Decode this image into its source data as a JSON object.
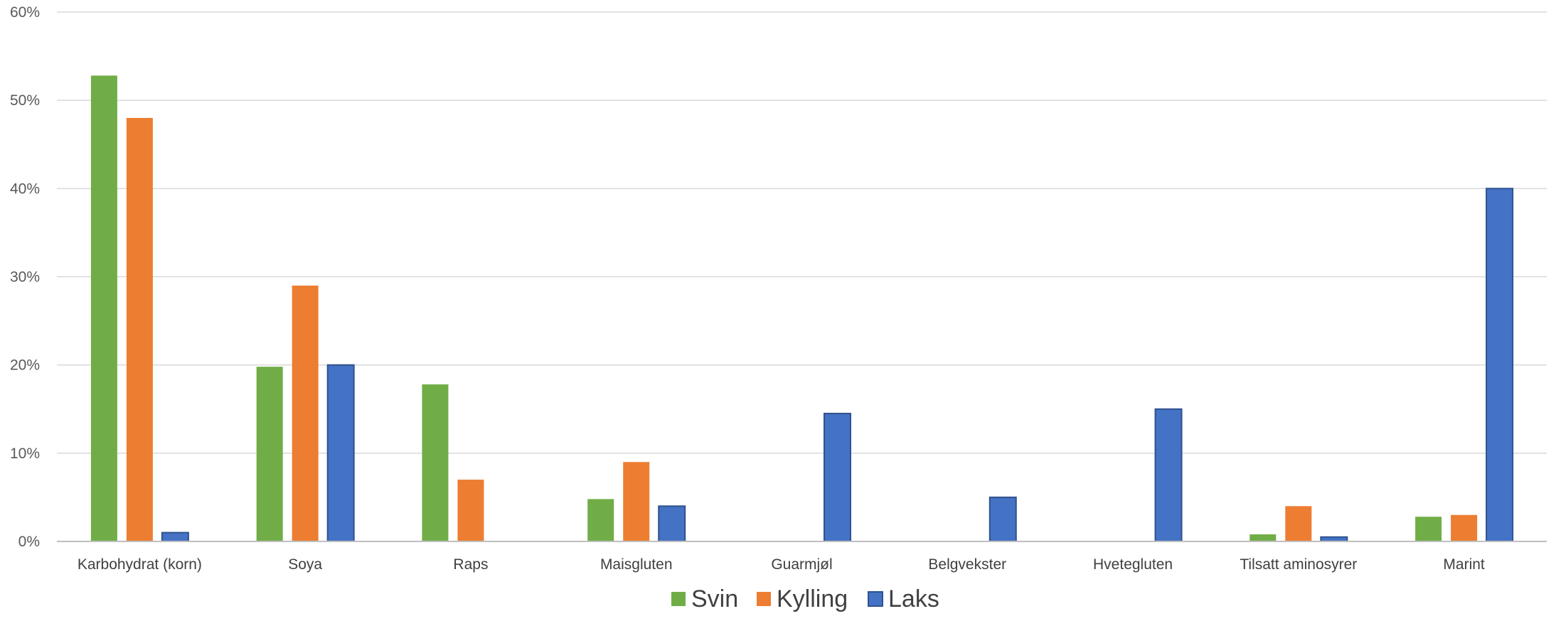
{
  "chart_data": {
    "type": "bar",
    "title": "",
    "xlabel": "",
    "ylabel": "",
    "ylim": [
      0,
      60
    ],
    "y_ticks": [
      "0%",
      "10%",
      "20%",
      "30%",
      "40%",
      "50%",
      "60%"
    ],
    "grid": true,
    "legend_position": "bottom",
    "categories": [
      "Karbohydrat (korn)",
      "Soya",
      "Raps",
      "Maisgluten",
      "Guarmjøl",
      "Belgvekster",
      "Hvetegluten",
      "Tilsatt aminosyrer",
      "Marint"
    ],
    "series": [
      {
        "name": "Svin",
        "color": "#70ad47",
        "values": [
          52.8,
          19.8,
          17.8,
          4.8,
          0,
          0,
          0,
          0.8,
          2.8
        ]
      },
      {
        "name": "Kylling",
        "color": "#ed7d31",
        "values": [
          48,
          29,
          7,
          9,
          0,
          0,
          0,
          4,
          3
        ]
      },
      {
        "name": "Laks",
        "color": "#4472c4",
        "values": [
          1,
          20,
          0,
          4,
          14.5,
          5,
          15,
          0.5,
          40
        ]
      }
    ]
  }
}
